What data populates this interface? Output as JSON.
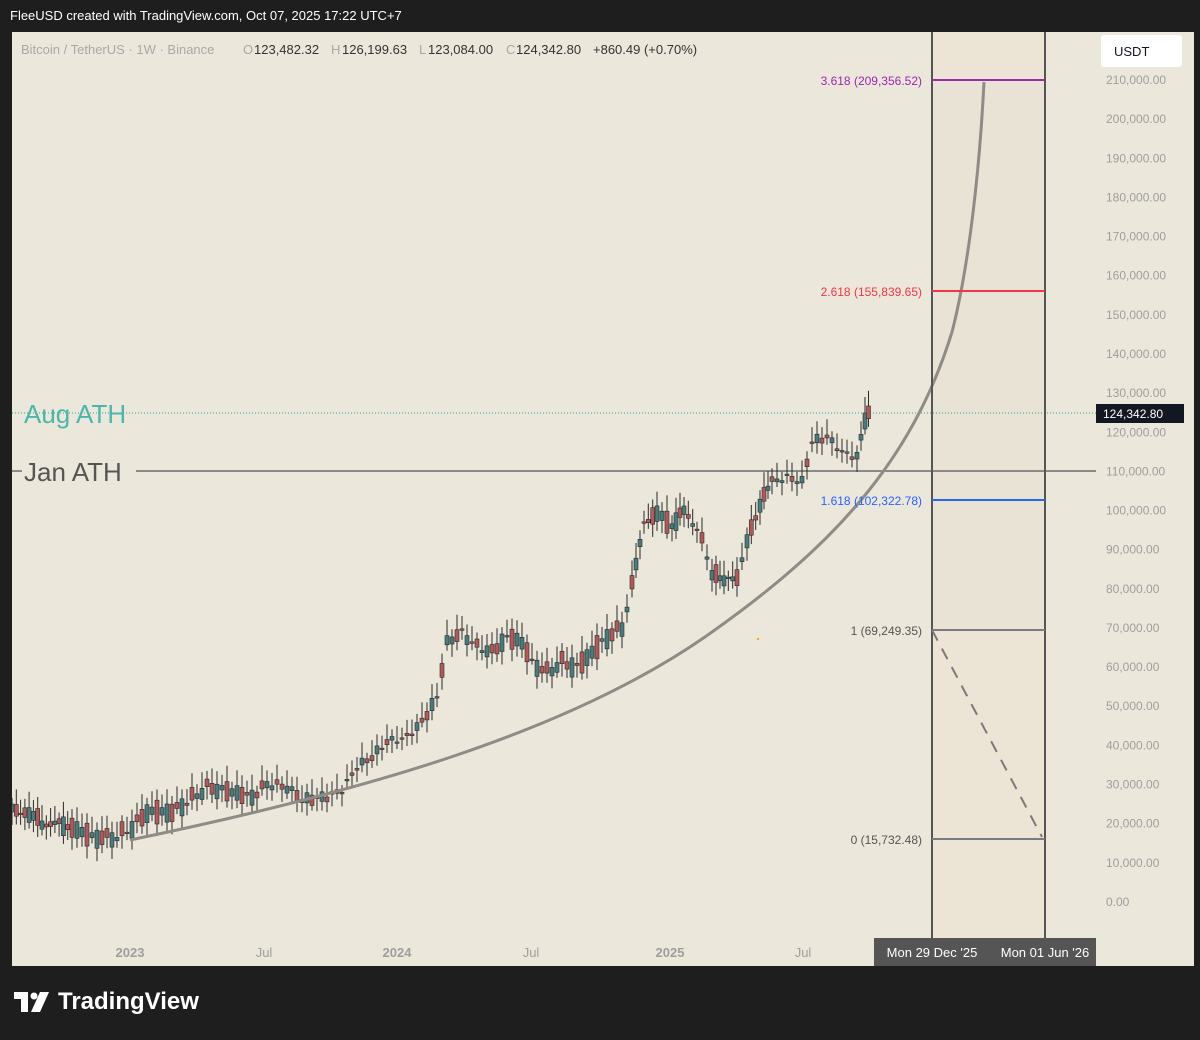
{
  "caption": "FleeUSD created with TradingView.com, Oct 07, 2025 17:22 UTC+7",
  "legend": {
    "symbol": "Bitcoin / TetherUS · 1W · Binance",
    "o_label": "O",
    "o_value": "123,482.32",
    "h_label": "H",
    "h_value": "126,199.63",
    "l_label": "L",
    "l_value": "123,084.00",
    "c_label": "C",
    "c_value": "124,342.80",
    "change": "+860.49 (+0.70%)"
  },
  "currency_button": "USDT",
  "price_axis": {
    "labels": [
      "210,000.00",
      "200,000.00",
      "190,000.00",
      "180,000.00",
      "170,000.00",
      "160,000.00",
      "150,000.00",
      "140,000.00",
      "130,000.00",
      "120,000.00",
      "110,000.00",
      "100,000.00",
      "90,000.00",
      "80,000.00",
      "70,000.00",
      "60,000.00",
      "50,000.00",
      "40,000.00",
      "30,000.00",
      "20,000.00",
      "10,000.00",
      "0.00"
    ],
    "current_price_label": "124,342.80"
  },
  "time_axis": {
    "labels": [
      "2023",
      "Jul",
      "2024",
      "Jul",
      "2025",
      "Jul"
    ],
    "range_start_label": "Mon 29 Dec '25",
    "range_end_label": "Mon 01 Jun '26"
  },
  "annotations": {
    "aug_ath": "Aug ATH",
    "jan_ath": "Jan ATH"
  },
  "fib_levels": [
    {
      "label": "3.618 (209,356.52)",
      "ratio": 3.618,
      "price": 209356.52,
      "color": "#9c27b0"
    },
    {
      "label": "2.618 (155,839.65)",
      "ratio": 2.618,
      "price": 155839.65,
      "color": "#f23645"
    },
    {
      "label": "1.618 (102,322.78)",
      "ratio": 1.618,
      "price": 102322.78,
      "color": "#2962ff"
    },
    {
      "label": "1 (69,249.35)",
      "ratio": 1,
      "price": 69249.35,
      "color": "#787b86"
    },
    {
      "label": "0 (15,732.48)",
      "ratio": 0,
      "price": 15732.48,
      "color": "#787b86"
    }
  ],
  "colors": {
    "background": "#ebe7da",
    "up_candle": "#4a7b7d",
    "down_candle": "#b05a5a",
    "aug_ath_line": "#26a69a",
    "jan_ath_line": "#8a8a8a",
    "curve": "#8f8b86"
  },
  "brand": "TradingView",
  "chart_data": {
    "type": "line",
    "series": [
      {
        "name": "Bitcoin / TetherUS · 1W · Binance",
        "x": [
          "2023",
          "Jul",
          "2024",
          "Jul",
          "2025",
          "Jul"
        ],
        "values": [
          16500,
          30000,
          43000,
          58000,
          95000,
          108000
        ]
      }
    ],
    "ylim": [
      0,
      215000
    ],
    "current_price": 124342.8,
    "jan_ath": 109500,
    "aug_ath": 124350,
    "fib_range_start": "Mon 29 Dec '25",
    "fib_range_end": "Mon 01 Jun '26"
  }
}
